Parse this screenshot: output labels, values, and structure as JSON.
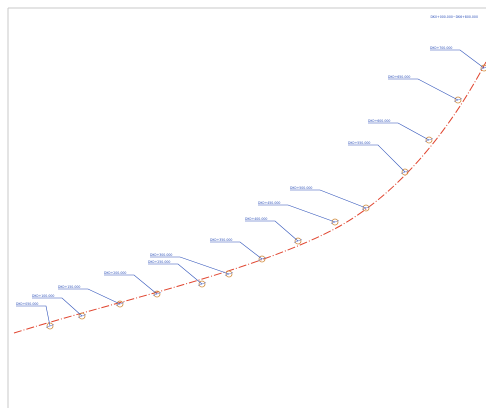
{
  "header": {
    "title": "DK0+000.000~DK6+800.000"
  },
  "labels": [
    "DK0+050.000",
    "DK0+100.000",
    "DK0+150.000",
    "DK0+200.000",
    "DK0+250.000",
    "DK0+300.000",
    "DK0+350.000",
    "DK0+400.000",
    "DK0+450.000",
    "DK0+500.000",
    "DK0+550.000",
    "DK0+600.000",
    "DK0+650.000",
    "DK0+700.000"
  ]
}
